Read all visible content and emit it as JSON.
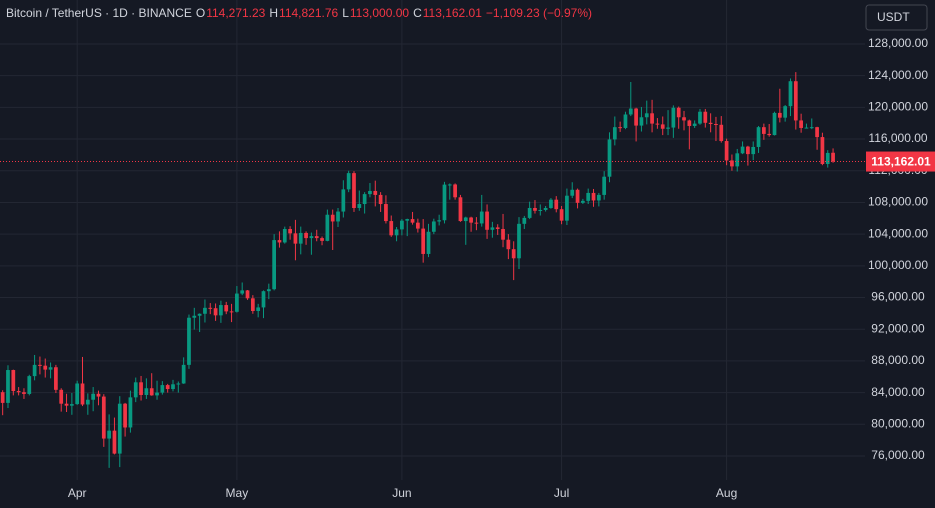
{
  "header": {
    "symbol": "Bitcoin / TetherUS · 1D · BINANCE",
    "ohlc": [
      {
        "key": "O",
        "value": "114,271.23"
      },
      {
        "key": "H",
        "value": "114,821.76"
      },
      {
        "key": "L",
        "value": "113,000.00"
      },
      {
        "key": "C",
        "value": "113,162.01"
      }
    ],
    "change": "−1,109.23 (−0.97%)"
  },
  "currency": "USDT",
  "chart_data": {
    "type": "candlestick",
    "up_color": "#089981",
    "down_color": "#f23645",
    "grid": true,
    "last_price": {
      "value": 113162.01,
      "label": "113,162.01"
    },
    "xlim": [
      -0.5,
      162
    ],
    "xticks": [
      {
        "value": 14,
        "label": "Apr"
      },
      {
        "value": 44,
        "label": "May"
      },
      {
        "value": 75,
        "label": "Jun"
      },
      {
        "value": 105,
        "label": "Jul"
      },
      {
        "value": 136,
        "label": "Aug"
      }
    ],
    "ylim": [
      72970,
      133550
    ],
    "yticks": [
      {
        "value": 76000,
        "label": "76,000.00"
      },
      {
        "value": 80000,
        "label": "80,000.00"
      },
      {
        "value": 84000,
        "label": "84,000.00"
      },
      {
        "value": 88000,
        "label": "88,000.00"
      },
      {
        "value": 92000,
        "label": "92,000.00"
      },
      {
        "value": 96000,
        "label": "96,000.00"
      },
      {
        "value": 100000,
        "label": "100,000.00"
      },
      {
        "value": 104000,
        "label": "104,000.00"
      },
      {
        "value": 108000,
        "label": "108,000.00"
      },
      {
        "value": 112000,
        "label": "112,000.00"
      },
      {
        "value": 116000,
        "label": "116,000.00"
      },
      {
        "value": 120000,
        "label": "120,000.00"
      },
      {
        "value": 124000,
        "label": "124,000.00"
      },
      {
        "value": 128000,
        "label": "128,000.00"
      }
    ],
    "candles": [
      [
        84050,
        84300,
        81150,
        82700
      ],
      [
        82700,
        87450,
        82050,
        86850
      ],
      [
        86850,
        86900,
        83650,
        84200
      ],
      [
        84200,
        84700,
        83650,
        84050
      ],
      [
        84050,
        84550,
        83200,
        83830
      ],
      [
        83830,
        86250,
        83650,
        86080
      ],
      [
        86080,
        88750,
        85550,
        87500
      ],
      [
        87500,
        88550,
        86300,
        87400
      ],
      [
        87400,
        88300,
        85900,
        86900
      ],
      [
        86900,
        87800,
        85800,
        87200
      ],
      [
        87200,
        87500,
        83950,
        84350
      ],
      [
        84350,
        84550,
        81600,
        82600
      ],
      [
        82600,
        83850,
        81550,
        82350
      ],
      [
        82350,
        83950,
        81200,
        82550
      ],
      [
        82550,
        85500,
        82450,
        85150
      ],
      [
        85150,
        88500,
        82300,
        82500
      ],
      [
        82500,
        83900,
        81200,
        83100
      ],
      [
        83100,
        84700,
        81650,
        83850
      ],
      [
        83850,
        84250,
        82400,
        83500
      ],
      [
        83500,
        83800,
        77150,
        78200
      ],
      [
        78200,
        81250,
        74500,
        79200
      ],
      [
        79200,
        80850,
        76200,
        76300
      ],
      [
        76300,
        83550,
        74600,
        82600
      ],
      [
        82600,
        82700,
        78450,
        79600
      ],
      [
        79600,
        84250,
        78950,
        83400
      ],
      [
        83400,
        85900,
        82800,
        85300
      ],
      [
        85300,
        86100,
        83000,
        83700
      ],
      [
        83700,
        85800,
        83200,
        84550
      ],
      [
        84550,
        86450,
        83600,
        83650
      ],
      [
        83650,
        85500,
        83100,
        84000
      ],
      [
        84000,
        85450,
        83750,
        84950
      ],
      [
        84950,
        85100,
        84000,
        84450
      ],
      [
        84450,
        85600,
        84150,
        85050
      ],
      [
        85050,
        85400,
        84000,
        85150
      ],
      [
        85150,
        88450,
        85100,
        87500
      ],
      [
        87500,
        93850,
        87000,
        93450
      ],
      [
        93450,
        94700,
        91950,
        93700
      ],
      [
        93700,
        94000,
        91650,
        93950
      ],
      [
        93950,
        95750,
        92850,
        94700
      ],
      [
        94700,
        95300,
        93900,
        94650
      ],
      [
        94650,
        95250,
        93050,
        93750
      ],
      [
        93750,
        95600,
        92800,
        95050
      ],
      [
        95050,
        95450,
        93900,
        94250
      ],
      [
        94250,
        95200,
        92900,
        94200
      ],
      [
        94200,
        97450,
        94100,
        96500
      ],
      [
        96500,
        97900,
        96300,
        96900
      ],
      [
        96900,
        96950,
        95700,
        95900
      ],
      [
        95900,
        96300,
        93950,
        94300
      ],
      [
        94300,
        95200,
        93500,
        94750
      ],
      [
        94750,
        96900,
        93400,
        96800
      ],
      [
        96800,
        97750,
        95800,
        97050
      ],
      [
        97050,
        104000,
        96900,
        103250
      ],
      [
        103250,
        104350,
        102300,
        102950
      ],
      [
        102950,
        104950,
        102800,
        104650
      ],
      [
        104650,
        105000,
        103300,
        104100
      ],
      [
        104100,
        105800,
        100700,
        102800
      ],
      [
        102800,
        104950,
        101450,
        104150
      ],
      [
        104150,
        104350,
        102650,
        103500
      ],
      [
        103500,
        104200,
        101400,
        103750
      ],
      [
        103750,
        104550,
        103100,
        103500
      ],
      [
        103500,
        103700,
        102600,
        103150
      ],
      [
        103150,
        107100,
        103100,
        106450
      ],
      [
        106450,
        107100,
        102000,
        105600
      ],
      [
        105600,
        107300,
        104900,
        106850
      ],
      [
        106850,
        110800,
        106100,
        109650
      ],
      [
        109650,
        112000,
        109300,
        111700
      ],
      [
        111700,
        111950,
        106800,
        107300
      ],
      [
        107300,
        109500,
        106950,
        107800
      ],
      [
        107800,
        109300,
        106600,
        109050
      ],
      [
        109050,
        110450,
        108650,
        109450
      ],
      [
        109450,
        110750,
        107500,
        108950
      ],
      [
        108950,
        109300,
        106800,
        107800
      ],
      [
        107800,
        108900,
        105350,
        105650
      ],
      [
        105650,
        106350,
        103650,
        103850
      ],
      [
        103850,
        104900,
        103100,
        104600
      ],
      [
        104600,
        105900,
        103850,
        105700
      ],
      [
        105700,
        105950,
        103750,
        105900
      ],
      [
        105900,
        106800,
        105200,
        105450
      ],
      [
        105450,
        105950,
        104200,
        104700
      ],
      [
        104700,
        105900,
        100400,
        101500
      ],
      [
        101500,
        105300,
        101100,
        104300
      ],
      [
        104300,
        105950,
        104000,
        105600
      ],
      [
        105600,
        106450,
        105100,
        105750
      ],
      [
        105750,
        110600,
        105350,
        110250
      ],
      [
        110250,
        110400,
        108350,
        110270
      ],
      [
        110270,
        110400,
        108350,
        108650
      ],
      [
        108650,
        108950,
        105550,
        105650
      ],
      [
        105650,
        106200,
        102650,
        106100
      ],
      [
        106100,
        106200,
        104300,
        105450
      ],
      [
        105450,
        106150,
        104500,
        105350
      ],
      [
        105350,
        108950,
        104950,
        106850
      ],
      [
        106850,
        107750,
        103400,
        104550
      ],
      [
        104550,
        105550,
        103550,
        104850
      ],
      [
        104850,
        105250,
        103900,
        104650
      ],
      [
        104650,
        106550,
        102350,
        103300
      ],
      [
        103300,
        104000,
        100850,
        102100
      ],
      [
        102100,
        103100,
        98200,
        100950
      ],
      [
        100950,
        106150,
        99600,
        105300
      ],
      [
        105300,
        106300,
        104650,
        106050
      ],
      [
        106050,
        108100,
        105900,
        107300
      ],
      [
        107300,
        108300,
        106600,
        106950
      ],
      [
        106950,
        107750,
        106350,
        107050
      ],
      [
        107050,
        107550,
        106850,
        107300
      ],
      [
        107300,
        108550,
        107200,
        108350
      ],
      [
        108350,
        108800,
        106750,
        107150
      ],
      [
        107150,
        107550,
        105250,
        105700
      ],
      [
        105700,
        109750,
        105150,
        108850
      ],
      [
        108850,
        110550,
        108550,
        109600
      ],
      [
        109600,
        109750,
        107250,
        107950
      ],
      [
        107950,
        108450,
        107800,
        108200
      ],
      [
        108200,
        109750,
        107800,
        109200
      ],
      [
        109200,
        109700,
        107450,
        108250
      ],
      [
        108250,
        109200,
        107500,
        108950
      ],
      [
        108950,
        111950,
        108350,
        111250
      ],
      [
        111250,
        116850,
        110550,
        115950
      ],
      [
        115950,
        118850,
        115200,
        117500
      ],
      [
        117500,
        118200,
        116900,
        117400
      ],
      [
        117400,
        119450,
        117250,
        119100
      ],
      [
        119100,
        123200,
        118900,
        119850
      ],
      [
        119850,
        119950,
        115700,
        117700
      ],
      [
        117700,
        120050,
        116950,
        118750
      ],
      [
        118750,
        120850,
        117850,
        119250
      ],
      [
        119250,
        120950,
        116850,
        117950
      ],
      [
        117950,
        118650,
        117300,
        117850
      ],
      [
        117850,
        118850,
        116500,
        117300
      ],
      [
        117300,
        119650,
        116500,
        117450
      ],
      [
        117450,
        120250,
        116150,
        119950
      ],
      [
        119950,
        120100,
        117300,
        118750
      ],
      [
        118750,
        119550,
        117100,
        118350
      ],
      [
        118350,
        118450,
        114700,
        117650
      ],
      [
        117650,
        118350,
        117400,
        117950
      ],
      [
        117950,
        119800,
        117800,
        119450
      ],
      [
        119450,
        119800,
        117450,
        118050
      ],
      [
        118050,
        119250,
        116850,
        117900
      ],
      [
        117900,
        118800,
        115750,
        117800
      ],
      [
        117800,
        118900,
        115550,
        115750
      ],
      [
        115750,
        116050,
        112700,
        113300
      ],
      [
        113300,
        114050,
        112000,
        112550
      ],
      [
        112550,
        114750,
        111900,
        114200
      ],
      [
        114200,
        115700,
        114100,
        115050
      ],
      [
        115050,
        115150,
        112650,
        114100
      ],
      [
        114100,
        115700,
        113350,
        115000
      ],
      [
        115000,
        117650,
        114250,
        117500
      ],
      [
        117500,
        117950,
        115900,
        116650
      ],
      [
        116650,
        117900,
        116300,
        116500
      ],
      [
        116500,
        119450,
        116450,
        119300
      ],
      [
        119300,
        122350,
        118100,
        118700
      ],
      [
        118700,
        120300,
        118200,
        120150
      ],
      [
        120150,
        123650,
        118900,
        123300
      ],
      [
        123300,
        124450,
        117200,
        118350
      ],
      [
        118350,
        119200,
        116800,
        117400
      ],
      [
        117400,
        117950,
        117350,
        117450
      ],
      [
        117450,
        118600,
        117250,
        117500
      ],
      [
        117500,
        117550,
        114650,
        116250
      ],
      [
        116250,
        116800,
        112700,
        112850
      ],
      [
        112850,
        114600,
        112400,
        114250
      ],
      [
        114271.23,
        114821.76,
        113000,
        113162.01
      ]
    ]
  }
}
